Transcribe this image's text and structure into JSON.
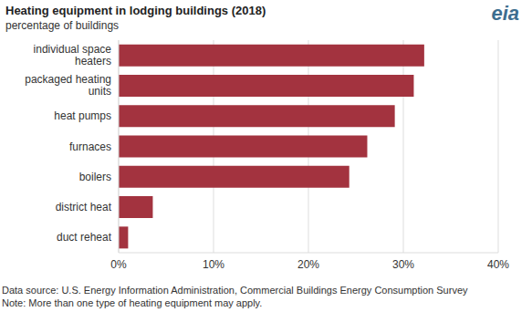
{
  "chart_data": {
    "type": "bar",
    "title": "Heating equipment in lodging buildings (2018)",
    "subtitle": "percentage of buildings",
    "logo": "eia",
    "source": "Data source: U.S. Energy Information Administration, Commercial Buildings Energy Consumption Survey",
    "note": "Note: More than one type of heating equipment may apply.",
    "orientation": "horizontal",
    "categories": [
      "individual space heaters",
      "packaged heating units",
      "heat pumps",
      "furnaces",
      "boilers",
      "district heat",
      "duct reheat"
    ],
    "values": [
      32.2,
      31.1,
      29.1,
      26.2,
      24.3,
      3.6,
      1.0
    ],
    "color": "#a3333f",
    "xlim": [
      0,
      40
    ],
    "xticks": [
      {
        "value": 0,
        "label": "0%"
      },
      {
        "value": 10,
        "label": "10%"
      },
      {
        "value": 20,
        "label": "20%"
      },
      {
        "value": 30,
        "label": "30%"
      },
      {
        "value": 40,
        "label": "40%"
      }
    ],
    "grid": true,
    "data_labels": false
  }
}
